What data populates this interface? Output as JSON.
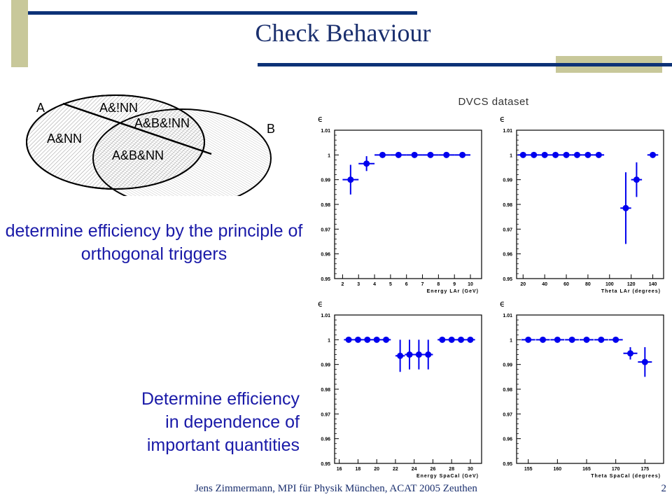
{
  "slide": {
    "title": "Check Behaviour",
    "dataset_label": "DVCS dataset",
    "text1": "determine efficiency by the principle of orthogonal triggers",
    "text2_lines": [
      "Determine efficiency",
      "in dependence of",
      "important quantities"
    ],
    "footer": "Jens Zimmermann, MPI für Physik München, ACAT 2005 Zeuthen",
    "page_number": "2",
    "colors": {
      "title": "#1a2f6e",
      "accent_bar": "#0d3277",
      "deco_khaki": "#c8c89a",
      "text_blue": "#1a1aa8",
      "marker": "#0000ee"
    }
  },
  "venn": {
    "set_a": "A",
    "set_b": "B",
    "region_a_not_nn": "A&!NN",
    "region_a_nn": "A&NN",
    "region_ab_not_nn": "A&B&!NN",
    "region_ab_nn": "A&B&NN"
  },
  "chart_data": [
    {
      "type": "scatter",
      "ylabel": "ϵ",
      "xlabel": "Energy LAr (GeV)",
      "xlim": [
        1.5,
        10.7
      ],
      "ylim": [
        0.95,
        1.01
      ],
      "xticks": [
        2,
        3,
        4,
        5,
        6,
        7,
        8,
        9,
        10
      ],
      "yticks": [
        0.95,
        0.96,
        0.97,
        0.98,
        0.99,
        1,
        1.01
      ],
      "ytick_labels": [
        "0.95",
        "0.96",
        "0.97",
        "0.98",
        "0.99",
        "1",
        "1.01"
      ],
      "points": [
        {
          "x": 2.5,
          "y": 0.99,
          "xerr": 0.5,
          "yerr": 0.006
        },
        {
          "x": 3.5,
          "y": 0.9965,
          "xerr": 0.5,
          "yerr": 0.003
        },
        {
          "x": 4.5,
          "y": 1.0,
          "xerr": 0.5,
          "yerr": 0
        },
        {
          "x": 5.5,
          "y": 1.0,
          "xerr": 0.5,
          "yerr": 0
        },
        {
          "x": 6.5,
          "y": 1.0,
          "xerr": 0.5,
          "yerr": 0
        },
        {
          "x": 7.5,
          "y": 1.0,
          "xerr": 0.5,
          "yerr": 0
        },
        {
          "x": 8.5,
          "y": 1.0,
          "xerr": 0.5,
          "yerr": 0
        },
        {
          "x": 9.5,
          "y": 1.0,
          "xerr": 0.5,
          "yerr": 0
        }
      ]
    },
    {
      "type": "scatter",
      "ylabel": "ϵ",
      "xlabel": "Theta LAr (degrees)",
      "xlim": [
        14,
        150
      ],
      "ylim": [
        0.95,
        1.01
      ],
      "xticks": [
        20,
        40,
        60,
        80,
        100,
        120,
        140
      ],
      "yticks": [
        0.95,
        0.96,
        0.97,
        0.98,
        0.99,
        1,
        1.01
      ],
      "ytick_labels": [
        "0.95",
        "0.96",
        "0.97",
        "0.98",
        "0.99",
        "1",
        "1.01"
      ],
      "points": [
        {
          "x": 20,
          "y": 1.0,
          "xerr": 5,
          "yerr": 0
        },
        {
          "x": 30,
          "y": 1.0,
          "xerr": 5,
          "yerr": 0
        },
        {
          "x": 40,
          "y": 1.0,
          "xerr": 5,
          "yerr": 0
        },
        {
          "x": 50,
          "y": 1.0,
          "xerr": 5,
          "yerr": 0
        },
        {
          "x": 60,
          "y": 1.0,
          "xerr": 5,
          "yerr": 0
        },
        {
          "x": 70,
          "y": 1.0,
          "xerr": 5,
          "yerr": 0
        },
        {
          "x": 80,
          "y": 1.0,
          "xerr": 5,
          "yerr": 0
        },
        {
          "x": 90,
          "y": 1.0,
          "xerr": 5,
          "yerr": 0
        },
        {
          "x": 115,
          "y": 0.9785,
          "xerr": 5,
          "yerr": 0.0145
        },
        {
          "x": 125,
          "y": 0.99,
          "xerr": 5,
          "yerr": 0.007
        },
        {
          "x": 140,
          "y": 1.0,
          "xerr": 5,
          "yerr": 0
        }
      ]
    },
    {
      "type": "scatter",
      "ylabel": "ϵ",
      "xlabel": "Energy SpaCal (GeV)",
      "xlim": [
        15.5,
        31.2
      ],
      "ylim": [
        0.95,
        1.01
      ],
      "xticks": [
        16,
        18,
        20,
        22,
        24,
        26,
        28,
        30
      ],
      "yticks": [
        0.95,
        0.96,
        0.97,
        0.98,
        0.99,
        1,
        1.01
      ],
      "ytick_labels": [
        "0.95",
        "0.96",
        "0.97",
        "0.98",
        "0.99",
        "1",
        "1.01"
      ],
      "points": [
        {
          "x": 17,
          "y": 1.0,
          "xerr": 0.5,
          "yerr": 0
        },
        {
          "x": 18,
          "y": 1.0,
          "xerr": 0.5,
          "yerr": 0
        },
        {
          "x": 19,
          "y": 1.0,
          "xerr": 0.5,
          "yerr": 0
        },
        {
          "x": 20,
          "y": 1.0,
          "xerr": 0.5,
          "yerr": 0
        },
        {
          "x": 21,
          "y": 1.0,
          "xerr": 0.5,
          "yerr": 0
        },
        {
          "x": 22.5,
          "y": 0.9935,
          "xerr": 0.5,
          "yerr": 0.0065
        },
        {
          "x": 23.5,
          "y": 0.994,
          "xerr": 0.5,
          "yerr": 0.006
        },
        {
          "x": 24.5,
          "y": 0.994,
          "xerr": 0.5,
          "yerr": 0.006
        },
        {
          "x": 25.5,
          "y": 0.994,
          "xerr": 0.5,
          "yerr": 0.006
        },
        {
          "x": 27,
          "y": 1.0,
          "xerr": 0.5,
          "yerr": 0
        },
        {
          "x": 28,
          "y": 1.0,
          "xerr": 0.5,
          "yerr": 0
        },
        {
          "x": 29,
          "y": 1.0,
          "xerr": 0.5,
          "yerr": 0
        },
        {
          "x": 30,
          "y": 1.0,
          "xerr": 0.5,
          "yerr": 0
        }
      ]
    },
    {
      "type": "scatter",
      "ylabel": "ϵ",
      "xlabel": "Theta SpaCal (degrees)",
      "xlim": [
        153,
        178.2
      ],
      "ylim": [
        0.95,
        1.01
      ],
      "xticks": [
        155,
        160,
        165,
        170,
        175
      ],
      "yticks": [
        0.95,
        0.96,
        0.97,
        0.98,
        0.99,
        1,
        1.01
      ],
      "ytick_labels": [
        "0.95",
        "0.96",
        "0.97",
        "0.98",
        "0.99",
        "1",
        "1.01"
      ],
      "points": [
        {
          "x": 155,
          "y": 1.0,
          "xerr": 1.2,
          "yerr": 0
        },
        {
          "x": 157.5,
          "y": 1.0,
          "xerr": 1.2,
          "yerr": 0
        },
        {
          "x": 160,
          "y": 1.0,
          "xerr": 1.2,
          "yerr": 0
        },
        {
          "x": 162.5,
          "y": 1.0,
          "xerr": 1.2,
          "yerr": 0
        },
        {
          "x": 165,
          "y": 1.0,
          "xerr": 1.2,
          "yerr": 0
        },
        {
          "x": 167.5,
          "y": 1.0,
          "xerr": 1.2,
          "yerr": 0
        },
        {
          "x": 170,
          "y": 1.0,
          "xerr": 1.2,
          "yerr": 0
        },
        {
          "x": 172.5,
          "y": 0.9945,
          "xerr": 1.2,
          "yerr": 0.0025
        },
        {
          "x": 175,
          "y": 0.991,
          "xerr": 1.2,
          "yerr": 0.006
        }
      ]
    }
  ]
}
